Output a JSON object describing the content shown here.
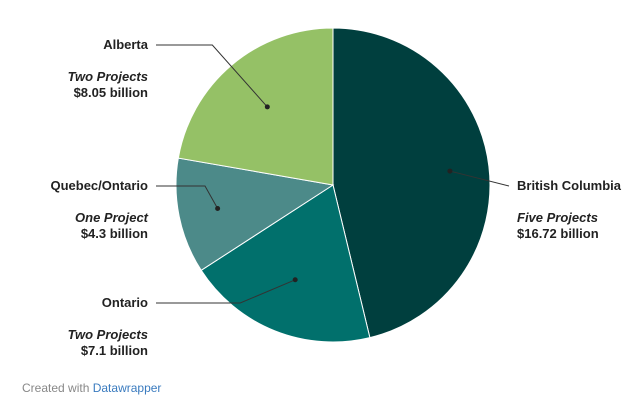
{
  "chart_data": {
    "type": "pie",
    "title": "",
    "slices": [
      {
        "label": "British Columbia",
        "subtitle": "Five Projects",
        "value_text": "$16.72 billion",
        "value": 16.72,
        "color": "#003f3e"
      },
      {
        "label": "Ontario",
        "subtitle": "Two Projects",
        "value_text": "$7.1 billion",
        "value": 7.1,
        "color": "#01706c"
      },
      {
        "label": "Quebec/Ontario",
        "subtitle": "One Project",
        "value_text": "$4.3 billion",
        "value": 4.3,
        "color": "#4c8a89"
      },
      {
        "label": "Alberta",
        "subtitle": "Two Projects",
        "value_text": "$8.05 billion",
        "value": 8.05,
        "color": "#95c166"
      }
    ]
  },
  "footer": {
    "credit_prefix": "Created with",
    "credit_link": "Datawrapper"
  }
}
